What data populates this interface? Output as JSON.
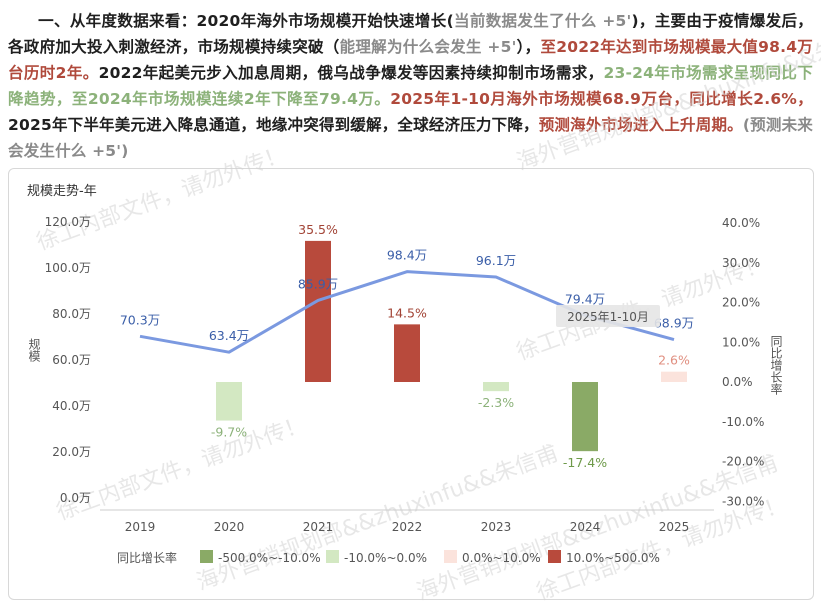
{
  "paragraph": {
    "segments": [
      {
        "text": "一、从年度数据来看：2020年海外市场规模开始快速增长(",
        "style": "normal"
      },
      {
        "text": "当前数据发生了什么 +5'",
        "style": "gray"
      },
      {
        "text": ")，主要由于疫情爆发后，各政府加大投入刺激经济，市场规模持续突破（",
        "style": "normal"
      },
      {
        "text": "能理解为什么会发生 +5'",
        "style": "gray"
      },
      {
        "text": "），",
        "style": "normal"
      },
      {
        "text": "至2022年达到市场规模最大值98.4万台历时2年。",
        "style": "red"
      },
      {
        "text": "2022年起美元步入加息周期，俄乌战争爆发等因素持续抑制市场需求，",
        "style": "normal"
      },
      {
        "text": "23-24年市场需求呈现同比下降趋势，至2024年市场规模连续2年下降至79.4万。",
        "style": "green"
      },
      {
        "text": "2025年1-10月海外市场规模68.9万台，同比增长2.6%，",
        "style": "red"
      },
      {
        "text": "2025年下半年美元进入降息通道，地缘冲突得到缓解，全球经济压力下降，",
        "style": "normal"
      },
      {
        "text": "预测海外市场进入上升周期。",
        "style": "red"
      },
      {
        "text": "(预测未来会发生什么 +5')",
        "style": "gray"
      }
    ]
  },
  "watermark": {
    "texts": [
      "徐工内部文件，请勿外传！",
      "海外营销规划部&&zhuxinfu&&朱信甫"
    ]
  },
  "chart_data": {
    "type": "bar+line",
    "title": "规模走势-年",
    "categories": [
      "2019",
      "2020",
      "2021",
      "2022",
      "2023",
      "2024",
      "2025"
    ],
    "series": [
      {
        "name": "规模",
        "type": "line",
        "axis": "left",
        "values": [
          70.3,
          63.4,
          85.9,
          98.4,
          96.1,
          79.4,
          68.9
        ],
        "labels": [
          "70.3万",
          "63.4万",
          "85.9万",
          "98.4万",
          "96.1万",
          "79.4万",
          "68.9万"
        ],
        "color": "#7b99e0"
      },
      {
        "name": "同比增长率",
        "type": "bar",
        "axis": "right",
        "values": [
          null,
          -9.7,
          35.5,
          14.5,
          -2.3,
          -17.4,
          2.6
        ],
        "labels": [
          "",
          "-9.7%",
          "35.5%",
          "14.5%",
          "-2.3%",
          "-17.4%",
          "2.6%"
        ]
      }
    ],
    "left_axis": {
      "title": "规模",
      "range": [
        0,
        120
      ],
      "ticks": [
        "0.0万",
        "20.0万",
        "40.0万",
        "60.0万",
        "80.0万",
        "100.0万",
        "120.0万"
      ]
    },
    "right_axis": {
      "title": "同比增长率",
      "range": [
        -30,
        40
      ],
      "ticks": [
        "-30.0%",
        "-20.0%",
        "-10.0%",
        "0.0%",
        "10.0%",
        "20.0%",
        "30.0%",
        "40.0%"
      ]
    },
    "annotation": {
      "text": "2025年1-10月",
      "category": "2025"
    },
    "legend": {
      "title": "同比增长率",
      "position": "bottom",
      "items": [
        {
          "label": "-500.0%~-10.0%",
          "color": "#8aaa66"
        },
        {
          "label": "-10.0%~0.0%",
          "color": "#d3e8c2"
        },
        {
          "label": "0.0%~10.0%",
          "color": "#fbe3dc"
        },
        {
          "label": "10.0%~500.0%",
          "color": "#b84a3c"
        }
      ]
    },
    "colors": {
      "line": "#7b99e0",
      "neg_strong": "#8aaa66",
      "neg_weak": "#d3e8c2",
      "pos_weak": "#fbe3dc",
      "pos_strong": "#b84a3c",
      "label_neg_strong": "#6e9a4a",
      "label_neg_weak": "#8cb27a",
      "label_pos_weak": "#e08f80",
      "label_pos_strong": "#a24436"
    },
    "grid": false
  }
}
